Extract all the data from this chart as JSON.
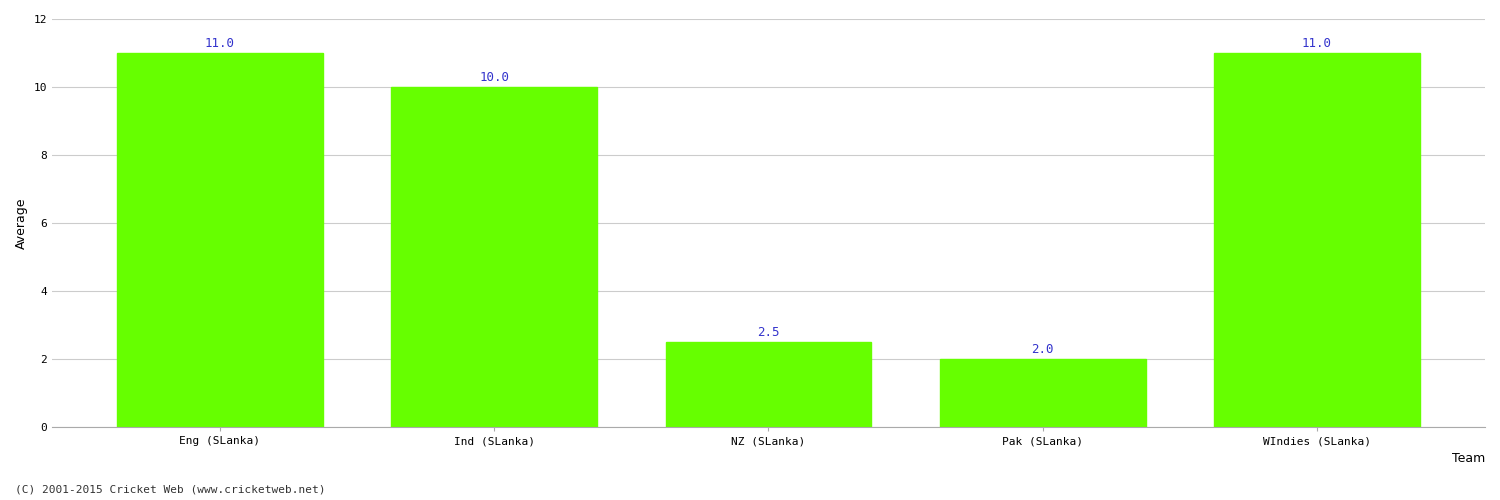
{
  "categories": [
    "Eng (SLanka)",
    "Ind (SLanka)",
    "NZ (SLanka)",
    "Pak (SLanka)",
    "WIndies (SLanka)"
  ],
  "values": [
    11.0,
    10.0,
    2.5,
    2.0,
    11.0
  ],
  "bar_color": "#66ff00",
  "bar_edge_color": "#66ff00",
  "xlabel": "Team",
  "ylabel": "Average",
  "ylim": [
    0,
    12
  ],
  "yticks": [
    0,
    2,
    4,
    6,
    8,
    10,
    12
  ],
  "label_color": "#3333cc",
  "label_fontsize": 9,
  "axis_label_fontsize": 9,
  "tick_fontsize": 8,
  "grid_color": "#cccccc",
  "background_color": "#ffffff",
  "figure_width": 15.0,
  "figure_height": 5.0,
  "footer_text": "(C) 2001-2015 Cricket Web (www.cricketweb.net)",
  "footer_fontsize": 8,
  "footer_color": "#333333",
  "bar_width": 0.75
}
